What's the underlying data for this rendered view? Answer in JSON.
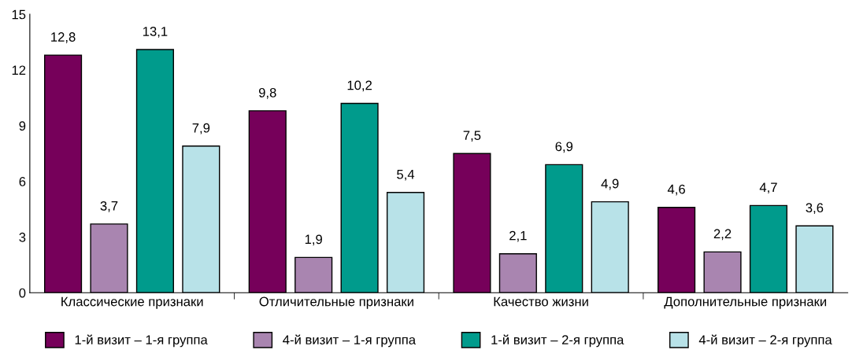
{
  "chart_data": {
    "type": "bar",
    "categories": [
      "Классические признаки",
      "Отличительные признаки",
      "Качество жизни",
      "Дополнительные признаки"
    ],
    "series": [
      {
        "name": "1-й визит – 1-я группа",
        "color": "#76005a",
        "values": [
          12.8,
          9.8,
          7.5,
          4.6
        ],
        "value_labels": [
          "12,8",
          "9,8",
          "7,5",
          "4,6"
        ]
      },
      {
        "name": "4-й визит – 1-я группа",
        "color": "#a985b0",
        "values": [
          3.7,
          1.9,
          2.1,
          2.2
        ],
        "value_labels": [
          "3,7",
          "1,9",
          "2,1",
          "2,2"
        ]
      },
      {
        "name": "1-й визит – 2-я группа",
        "color": "#009b8c",
        "values": [
          13.1,
          10.2,
          6.9,
          4.7
        ],
        "value_labels": [
          "13,1",
          "10,2",
          "6,9",
          "4,7"
        ]
      },
      {
        "name": "4-й визит – 2-я группа",
        "color": "#b8e2e8",
        "values": [
          7.9,
          5.4,
          4.9,
          3.6
        ],
        "value_labels": [
          "7,9",
          "5,4",
          "4,9",
          "3,6"
        ]
      }
    ],
    "ylim": [
      0,
      15
    ],
    "yticks": [
      0,
      3,
      6,
      9,
      12,
      15
    ],
    "grid": false,
    "legend": "bottom"
  }
}
